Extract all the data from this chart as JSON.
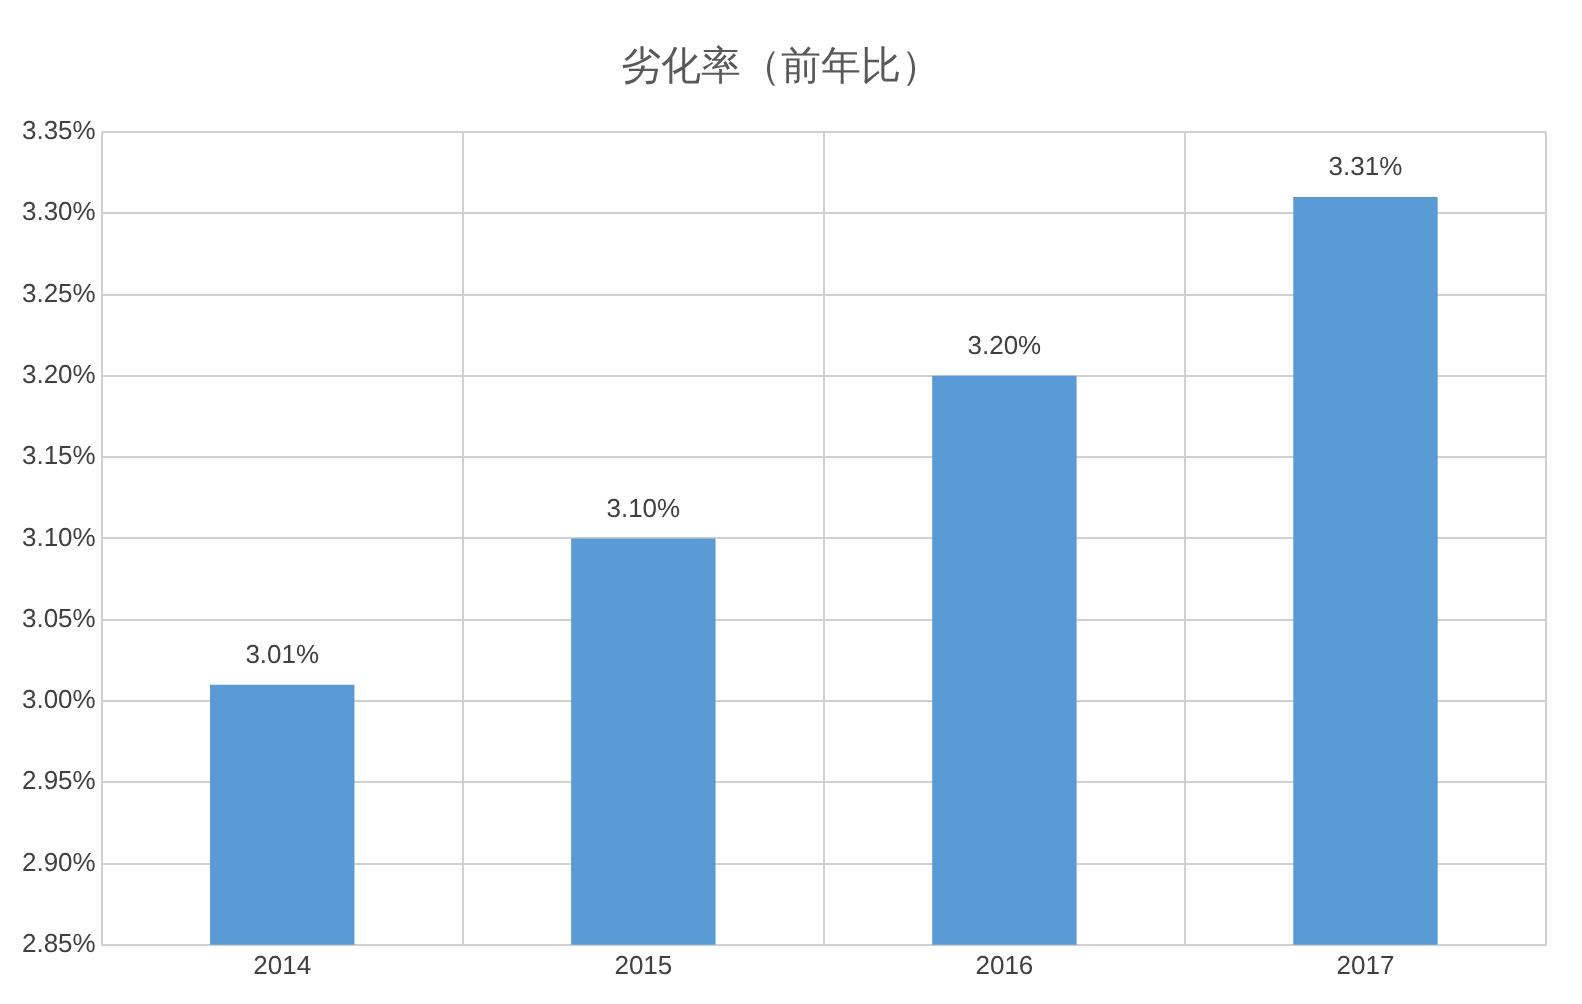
{
  "chart_data": {
    "type": "bar",
    "title": "劣化率（前年比）",
    "categories": [
      "2014",
      "2015",
      "2016",
      "2017"
    ],
    "values": [
      3.01,
      3.1,
      3.2,
      3.31
    ],
    "value_labels": [
      "3.01%",
      "3.10%",
      "3.20%",
      "3.31%"
    ],
    "color": "#5b9bd5",
    "ylim": [
      2.85,
      3.35
    ],
    "yticks": [
      {
        "value": 2.85,
        "label": "2.85%"
      },
      {
        "value": 2.9,
        "label": "2.90%"
      },
      {
        "value": 2.95,
        "label": "2.95%"
      },
      {
        "value": 3.0,
        "label": "3.00%"
      },
      {
        "value": 3.05,
        "label": "3.05%"
      },
      {
        "value": 3.1,
        "label": "3.10%"
      },
      {
        "value": 3.15,
        "label": "3.15%"
      },
      {
        "value": 3.2,
        "label": "3.20%"
      },
      {
        "value": 3.25,
        "label": "3.25%"
      },
      {
        "value": 3.3,
        "label": "3.30%"
      },
      {
        "value": 3.35,
        "label": "3.35%"
      }
    ],
    "grid": true
  }
}
